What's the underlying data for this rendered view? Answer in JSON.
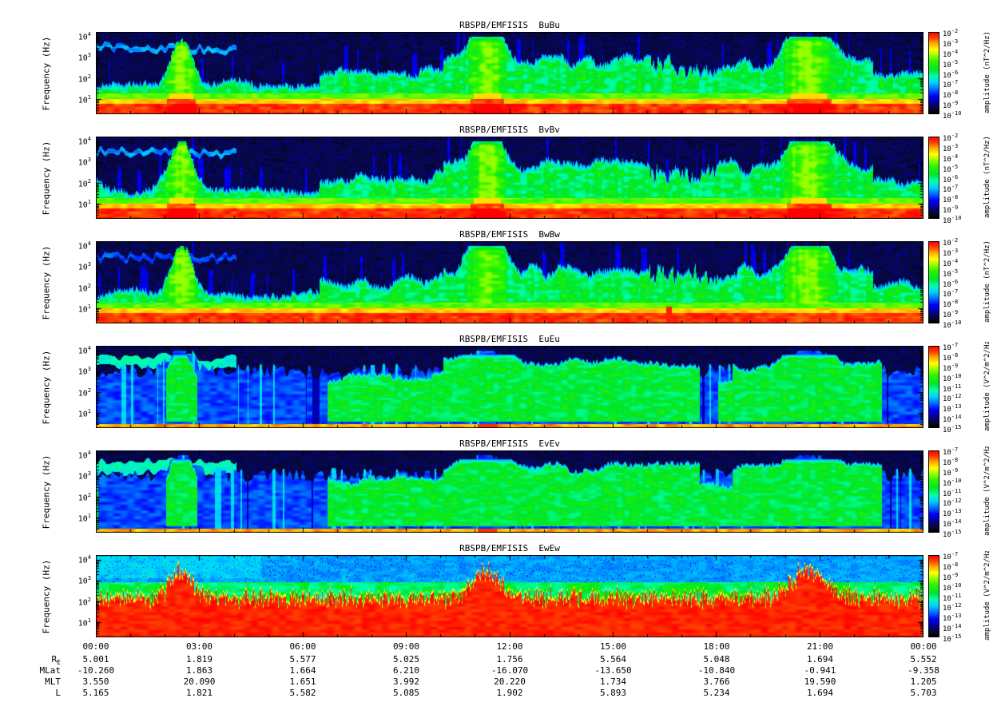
{
  "page": {
    "background": "#ffffff",
    "text_color": "#000000"
  },
  "chart_data": {
    "type": "heatmap",
    "description": "Six stacked log-frequency vs. time wave power spectrogram panels (RBSP-B EMFISIS magnetic BuBu/BvBv/BwBw and electric EuEu/EvEv/EwEw auto-spectra) over 24 hours, with rainbow colorbars and spacecraft ephemeris rows beneath the time axis.",
    "x_ticks": [
      "00:00",
      "03:00",
      "06:00",
      "09:00",
      "12:00",
      "15:00",
      "18:00",
      "21:00",
      "00:00"
    ],
    "y_axis": {
      "label": "Frequency (Hz)",
      "scale": "log",
      "tick_exponents": [
        4,
        3,
        2,
        1
      ],
      "range_hz": [
        2,
        12000
      ]
    },
    "panels": [
      {
        "title": "RBSPB/EMFISIS  BuBu",
        "colorbar_label": "amplitude (nT^2/Hz)",
        "colorbar_tick_exponents": [
          -2,
          -3,
          -4,
          -5,
          -6,
          -7,
          -8,
          -9,
          -10
        ]
      },
      {
        "title": "RBSPB/EMFISIS  BvBv",
        "colorbar_label": "amplitude (nT^2/Hz)",
        "colorbar_tick_exponents": [
          -2,
          -3,
          -4,
          -5,
          -6,
          -7,
          -8,
          -9,
          -10
        ]
      },
      {
        "title": "RBSPB/EMFISIS  BwBw",
        "colorbar_label": "amplitude (nT^2/Hz)",
        "colorbar_tick_exponents": [
          -2,
          -3,
          -4,
          -5,
          -6,
          -7,
          -8,
          -9,
          -10
        ]
      },
      {
        "title": "RBSPB/EMFISIS  EuEu",
        "colorbar_label": "amplitude (V^2/m^2/Hz)",
        "colorbar_tick_exponents": [
          -7,
          -8,
          -9,
          -10,
          -11,
          -12,
          -13,
          -14,
          -15
        ]
      },
      {
        "title": "RBSPB/EMFISIS  EvEv",
        "colorbar_label": "amplitude (V^2/m^2/Hz)",
        "colorbar_tick_exponents": [
          -7,
          -8,
          -9,
          -10,
          -11,
          -12,
          -13,
          -14,
          -15
        ]
      },
      {
        "title": "RBSPB/EMFISIS  EwEw",
        "colorbar_label": "amplitude (V^2/m^2/Hz)",
        "colorbar_tick_exponents": [
          -7,
          -8,
          -9,
          -10,
          -11,
          -12,
          -13,
          -14,
          -15
        ]
      }
    ],
    "ephemeris": {
      "rows": [
        {
          "label": "R",
          "sub": "E",
          "values": [
            "5.001",
            "1.819",
            "5.577",
            "5.025",
            "1.756",
            "5.564",
            "5.048",
            "1.694",
            "5.552"
          ]
        },
        {
          "label": "MLat",
          "sub": "",
          "values": [
            "-10.260",
            "1.863",
            "1.664",
            "6.210",
            "-16.070",
            "-13.650",
            "-10.840",
            "-0.941",
            "-9.358"
          ]
        },
        {
          "label": "MLT",
          "sub": "",
          "values": [
            "3.550",
            "20.090",
            "1.651",
            "3.992",
            "20.220",
            "1.734",
            "3.766",
            "19.590",
            "1.205"
          ]
        },
        {
          "label": "L",
          "sub": "",
          "values": [
            "5.165",
            "1.821",
            "5.582",
            "5.085",
            "1.902",
            "5.893",
            "5.234",
            "1.694",
            "5.703"
          ]
        }
      ]
    }
  }
}
